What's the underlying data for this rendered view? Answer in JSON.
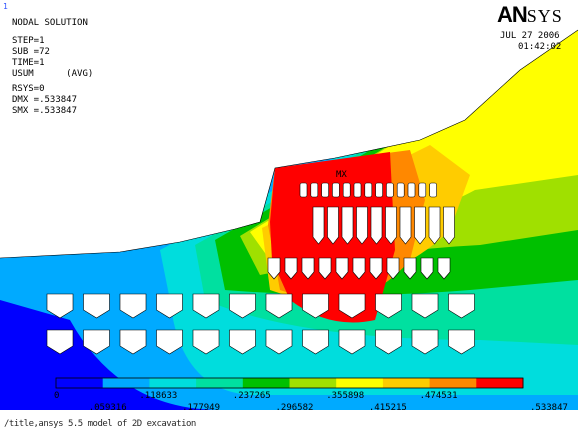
{
  "window_number": "1",
  "header": {
    "title": "NODAL SOLUTION",
    "step": "STEP=1",
    "sub": "SUB =72",
    "time": "TIME=1",
    "usum": "USUM      (AVG)",
    "rsys": "RSYS=0",
    "dmx": "DMX =.533847",
    "smx": "SMX =.533847"
  },
  "logo": {
    "an": "AN",
    "sys": "SYS"
  },
  "date": "JUL 27 2006",
  "time_of_day": "01:42:02",
  "max_marker": "MX",
  "legend": {
    "colors": [
      "#0000ff",
      "#00aaff",
      "#00dddd",
      "#00e0a0",
      "#00c000",
      "#a0e000",
      "#ffff00",
      "#ffcc00",
      "#ff8800",
      "#ff0000"
    ],
    "upper_labels": [
      "0",
      ".118633",
      ".237265",
      ".355898",
      ".474531"
    ],
    "lower_labels": [
      ".059316",
      ".177949",
      ".296582",
      ".415215",
      ".533847"
    ]
  },
  "command_line": "/title,ansys 5.5 model of 2D excavation"
}
